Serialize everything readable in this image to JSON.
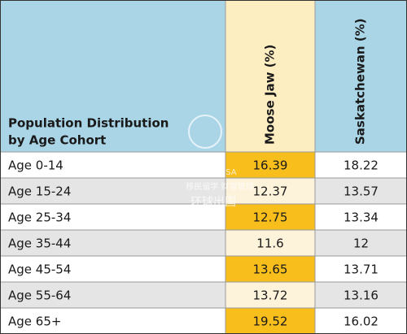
{
  "table": {
    "header": [
      "Population Distribution\nby Age Cohort",
      "Moose Jaw (%)",
      "Saskatchewan (%)"
    ],
    "rows": [
      [
        "Age 0-14",
        "16.39",
        "18.22"
      ],
      [
        "Age 15-24",
        "12.37",
        "13.57"
      ],
      [
        "Age 25-34",
        "12.75",
        "13.34"
      ],
      [
        "Age 35-44",
        "11.6",
        "12"
      ],
      [
        "Age 45-54",
        "13.65",
        "13.71"
      ],
      [
        "Age 55-64",
        "13.72",
        "13.16"
      ],
      [
        "Age 65+",
        "19.52",
        "16.02"
      ]
    ]
  },
  "watermark": [
    "GLOBEVISA",
    "移民留学 财富管理",
    "环球出国"
  ]
}
